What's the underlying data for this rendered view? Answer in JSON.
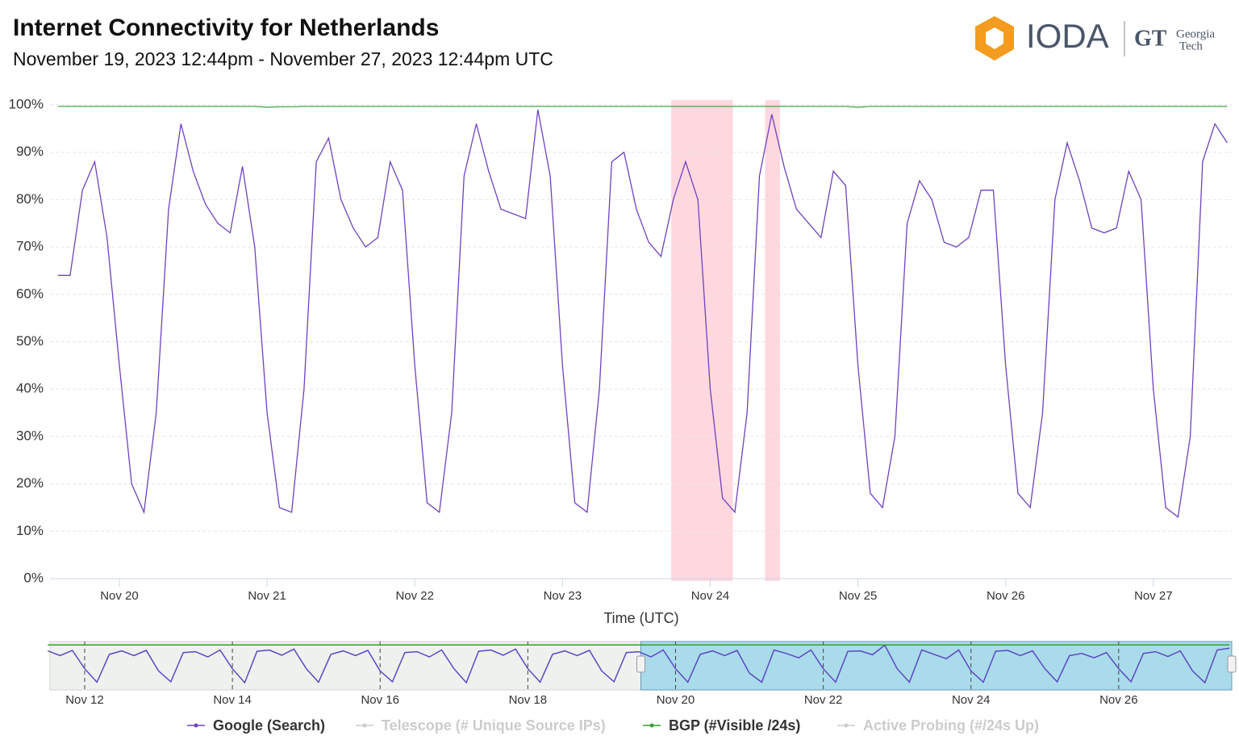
{
  "header": {
    "logo": "IODA",
    "partner_mark": "GT",
    "partner_name": [
      "Georgia",
      "Tech"
    ]
  },
  "chart_data": [
    {
      "type": "line",
      "title": "Internet Connectivity for  Netherlands",
      "subtitle": "November 19, 2023 12:44pm - November 27, 2023 12:44pm UTC",
      "x_label": "Time (UTC)",
      "xlim": [
        "2023-11-19T12:44",
        "2023-11-27T12:44"
      ],
      "xticks": [
        {
          "value": "2023-11-20T00:00",
          "label": "Nov 20"
        },
        {
          "value": "2023-11-21T00:00",
          "label": "Nov 21"
        },
        {
          "value": "2023-11-22T00:00",
          "label": "Nov 22"
        },
        {
          "value": "2023-11-23T00:00",
          "label": "Nov 23"
        },
        {
          "value": "2023-11-24T00:00",
          "label": "Nov 24"
        },
        {
          "value": "2023-11-25T00:00",
          "label": "Nov 25"
        },
        {
          "value": "2023-11-26T00:00",
          "label": "Nov 26"
        },
        {
          "value": "2023-11-27T00:00",
          "label": "Nov 27"
        }
      ],
      "ylim": [
        0,
        100
      ],
      "yticks": [
        {
          "value": 0,
          "label": "0%"
        },
        {
          "value": 10,
          "label": "10%"
        },
        {
          "value": 20,
          "label": "20%"
        },
        {
          "value": 30,
          "label": "30%"
        },
        {
          "value": 40,
          "label": "40%"
        },
        {
          "value": 50,
          "label": "50%"
        },
        {
          "value": 60,
          "label": "60%"
        },
        {
          "value": 70,
          "label": "70%"
        },
        {
          "value": 80,
          "label": "80%"
        },
        {
          "value": 90,
          "label": "90%"
        },
        {
          "value": 100,
          "label": "100%"
        }
      ],
      "grid": true,
      "alert_bands": [
        {
          "start": "2023-11-23T17:40",
          "end": "2023-11-24T03:40"
        },
        {
          "start": "2023-11-24T08:55",
          "end": "2023-11-24T11:20"
        }
      ],
      "alert_color": "#ffb6c4",
      "x": [
        "2023-11-19T14:00",
        "2023-11-19T16:00",
        "2023-11-19T18:00",
        "2023-11-19T20:00",
        "2023-11-19T22:00",
        "2023-11-20T00:00",
        "2023-11-20T02:00",
        "2023-11-20T04:00",
        "2023-11-20T06:00",
        "2023-11-20T08:00",
        "2023-11-20T10:00",
        "2023-11-20T12:00",
        "2023-11-20T14:00",
        "2023-11-20T16:00",
        "2023-11-20T18:00",
        "2023-11-20T20:00",
        "2023-11-20T22:00",
        "2023-11-21T00:00",
        "2023-11-21T02:00",
        "2023-11-21T04:00",
        "2023-11-21T06:00",
        "2023-11-21T08:00",
        "2023-11-21T10:00",
        "2023-11-21T12:00",
        "2023-11-21T14:00",
        "2023-11-21T16:00",
        "2023-11-21T18:00",
        "2023-11-21T20:00",
        "2023-11-21T22:00",
        "2023-11-22T00:00",
        "2023-11-22T02:00",
        "2023-11-22T04:00",
        "2023-11-22T06:00",
        "2023-11-22T08:00",
        "2023-11-22T10:00",
        "2023-11-22T12:00",
        "2023-11-22T14:00",
        "2023-11-22T16:00",
        "2023-11-22T18:00",
        "2023-11-22T20:00",
        "2023-11-22T22:00",
        "2023-11-23T00:00",
        "2023-11-23T02:00",
        "2023-11-23T04:00",
        "2023-11-23T06:00",
        "2023-11-23T08:00",
        "2023-11-23T10:00",
        "2023-11-23T12:00",
        "2023-11-23T14:00",
        "2023-11-23T16:00",
        "2023-11-23T18:00",
        "2023-11-23T20:00",
        "2023-11-23T22:00",
        "2023-11-24T00:00",
        "2023-11-24T02:00",
        "2023-11-24T04:00",
        "2023-11-24T06:00",
        "2023-11-24T08:00",
        "2023-11-24T10:00",
        "2023-11-24T12:00",
        "2023-11-24T14:00",
        "2023-11-24T16:00",
        "2023-11-24T18:00",
        "2023-11-24T20:00",
        "2023-11-24T22:00",
        "2023-11-25T00:00",
        "2023-11-25T02:00",
        "2023-11-25T04:00",
        "2023-11-25T06:00",
        "2023-11-25T08:00",
        "2023-11-25T10:00",
        "2023-11-25T12:00",
        "2023-11-25T14:00",
        "2023-11-25T16:00",
        "2023-11-25T18:00",
        "2023-11-25T20:00",
        "2023-11-25T22:00",
        "2023-11-26T00:00",
        "2023-11-26T02:00",
        "2023-11-26T04:00",
        "2023-11-26T06:00",
        "2023-11-26T08:00",
        "2023-11-26T10:00",
        "2023-11-26T12:00",
        "2023-11-26T14:00",
        "2023-11-26T16:00",
        "2023-11-26T18:00",
        "2023-11-26T20:00",
        "2023-11-26T22:00",
        "2023-11-27T00:00",
        "2023-11-27T02:00",
        "2023-11-27T04:00",
        "2023-11-27T06:00",
        "2023-11-27T08:00",
        "2023-11-27T10:00",
        "2023-11-27T12:00"
      ],
      "series": [
        {
          "name": "Google (Search)",
          "color": "#6f42c1",
          "values": [
            64,
            64,
            82,
            88,
            72,
            45,
            20,
            14,
            35,
            78,
            96,
            86,
            79,
            75,
            73,
            87,
            70,
            35,
            15,
            14,
            40,
            88,
            93,
            80,
            74,
            70,
            72,
            88,
            82,
            45,
            16,
            14,
            35,
            85,
            96,
            86,
            78,
            77,
            76,
            99,
            85,
            45,
            16,
            14,
            40,
            88,
            90,
            78,
            71,
            68,
            80,
            88,
            80,
            40,
            17,
            14,
            35,
            85,
            98,
            87,
            78,
            75,
            72,
            86,
            83,
            45,
            18,
            15,
            30,
            75,
            84,
            80,
            71,
            70,
            72,
            82,
            82,
            45,
            18,
            15,
            35,
            80,
            92,
            84,
            74,
            73,
            74,
            86,
            80,
            40,
            15,
            13,
            30,
            88,
            96,
            92
          ]
        },
        {
          "name": "Telescope (# Unique Source IPs)",
          "color": "#cccccc",
          "visible": false
        },
        {
          "name": "BGP (#Visible /24s)",
          "color": "#33a02c",
          "values": [
            99.7,
            99.7,
            99.7,
            99.7,
            99.7,
            99.7,
            99.7,
            99.7,
            99.7,
            99.7,
            99.7,
            99.7,
            99.7,
            99.7,
            99.7,
            99.7,
            99.7,
            99.5,
            99.6,
            99.6,
            99.7,
            99.7,
            99.7,
            99.7,
            99.7,
            99.7,
            99.7,
            99.7,
            99.7,
            99.7,
            99.7,
            99.7,
            99.7,
            99.7,
            99.7,
            99.7,
            99.7,
            99.7,
            99.7,
            99.7,
            99.7,
            99.7,
            99.7,
            99.7,
            99.7,
            99.7,
            99.7,
            99.7,
            99.7,
            99.7,
            99.7,
            99.7,
            99.7,
            99.7,
            99.7,
            99.7,
            99.7,
            99.7,
            99.7,
            99.7,
            99.7,
            99.7,
            99.7,
            99.7,
            99.7,
            99.5,
            99.7,
            99.7,
            99.7,
            99.7,
            99.7,
            99.7,
            99.7,
            99.7,
            99.7,
            99.7,
            99.7,
            99.7,
            99.7,
            99.7,
            99.7,
            99.7,
            99.7,
            99.7,
            99.7,
            99.7,
            99.7,
            99.7,
            99.7,
            99.7,
            99.7,
            99.7,
            99.7,
            99.7,
            99.7,
            99.7
          ]
        },
        {
          "name": "Active Probing (#/24s Up)",
          "color": "#cccccc",
          "visible": false
        }
      ]
    },
    {
      "type": "line",
      "xlim": [
        "2023-11-11T12:44",
        "2023-11-27T12:44"
      ],
      "xticks": [
        {
          "value": "2023-11-12T00:00",
          "label": "Nov 12"
        },
        {
          "value": "2023-11-14T00:00",
          "label": "Nov 14"
        },
        {
          "value": "2023-11-16T00:00",
          "label": "Nov 16"
        },
        {
          "value": "2023-11-18T00:00",
          "label": "Nov 18"
        },
        {
          "value": "2023-11-20T00:00",
          "label": "Nov 20"
        },
        {
          "value": "2023-11-22T00:00",
          "label": "Nov 22"
        },
        {
          "value": "2023-11-24T00:00",
          "label": "Nov 24"
        },
        {
          "value": "2023-11-26T00:00",
          "label": "Nov 26"
        }
      ],
      "ylim": [
        0,
        100
      ],
      "selection": [
        "2023-11-19T12:44",
        "2023-11-27T12:44"
      ],
      "selection_color": "#a9dbeb",
      "x": [
        "2023-11-11T12:00",
        "2023-11-11T16:00",
        "2023-11-11T20:00",
        "2023-11-12T00:00",
        "2023-11-12T04:00",
        "2023-11-12T08:00",
        "2023-11-12T12:00",
        "2023-11-12T16:00",
        "2023-11-12T20:00",
        "2023-11-13T00:00",
        "2023-11-13T04:00",
        "2023-11-13T08:00",
        "2023-11-13T12:00",
        "2023-11-13T16:00",
        "2023-11-13T20:00",
        "2023-11-14T00:00",
        "2023-11-14T04:00",
        "2023-11-14T08:00",
        "2023-11-14T12:00",
        "2023-11-14T16:00",
        "2023-11-14T20:00",
        "2023-11-15T00:00",
        "2023-11-15T04:00",
        "2023-11-15T08:00",
        "2023-11-15T12:00",
        "2023-11-15T16:00",
        "2023-11-15T20:00",
        "2023-11-16T00:00",
        "2023-11-16T04:00",
        "2023-11-16T08:00",
        "2023-11-16T12:00",
        "2023-11-16T16:00",
        "2023-11-16T20:00",
        "2023-11-17T00:00",
        "2023-11-17T04:00",
        "2023-11-17T08:00",
        "2023-11-17T12:00",
        "2023-11-17T16:00",
        "2023-11-17T20:00",
        "2023-11-18T00:00",
        "2023-11-18T04:00",
        "2023-11-18T08:00",
        "2023-11-18T12:00",
        "2023-11-18T16:00",
        "2023-11-18T20:00",
        "2023-11-19T00:00",
        "2023-11-19T04:00",
        "2023-11-19T08:00",
        "2023-11-19T12:00",
        "2023-11-19T16:00",
        "2023-11-19T20:00",
        "2023-11-20T00:00",
        "2023-11-20T04:00",
        "2023-11-20T08:00",
        "2023-11-20T12:00",
        "2023-11-20T16:00",
        "2023-11-20T20:00",
        "2023-11-21T00:00",
        "2023-11-21T04:00",
        "2023-11-21T08:00",
        "2023-11-21T12:00",
        "2023-11-21T16:00",
        "2023-11-21T20:00",
        "2023-11-22T00:00",
        "2023-11-22T04:00",
        "2023-11-22T08:00",
        "2023-11-22T12:00",
        "2023-11-22T16:00",
        "2023-11-22T20:00",
        "2023-11-23T00:00",
        "2023-11-23T04:00",
        "2023-11-23T08:00",
        "2023-11-23T12:00",
        "2023-11-23T16:00",
        "2023-11-23T20:00",
        "2023-11-24T00:00",
        "2023-11-24T04:00",
        "2023-11-24T08:00",
        "2023-11-24T12:00",
        "2023-11-24T16:00",
        "2023-11-24T20:00",
        "2023-11-25T00:00",
        "2023-11-25T04:00",
        "2023-11-25T08:00",
        "2023-11-25T12:00",
        "2023-11-25T16:00",
        "2023-11-25T20:00",
        "2023-11-26T00:00",
        "2023-11-26T04:00",
        "2023-11-26T08:00",
        "2023-11-26T12:00",
        "2023-11-26T16:00",
        "2023-11-26T20:00",
        "2023-11-27T00:00",
        "2023-11-27T04:00",
        "2023-11-27T08:00",
        "2023-11-27T12:00"
      ],
      "series": [
        {
          "color": "#5b48c2",
          "values": [
            86,
            75,
            87,
            45,
            14,
            78,
            86,
            75,
            87,
            40,
            15,
            82,
            84,
            72,
            88,
            45,
            13,
            85,
            88,
            76,
            90,
            45,
            14,
            78,
            86,
            75,
            87,
            40,
            15,
            82,
            84,
            72,
            88,
            45,
            13,
            85,
            88,
            76,
            90,
            45,
            14,
            78,
            86,
            75,
            87,
            40,
            15,
            82,
            84,
            72,
            88,
            45,
            14,
            78,
            86,
            75,
            87,
            35,
            14,
            88,
            80,
            70,
            88,
            45,
            14,
            85,
            86,
            77,
            99,
            45,
            14,
            88,
            78,
            68,
            88,
            40,
            14,
            85,
            87,
            75,
            86,
            45,
            15,
            75,
            80,
            70,
            82,
            45,
            15,
            80,
            84,
            73,
            86,
            40,
            13,
            88,
            92
          ]
        },
        {
          "color": "#33a02c",
          "values": [
            99.7,
            99.7,
            99.7,
            99.7,
            99.7,
            99.7,
            99.7,
            99.7,
            99.7,
            99.7,
            99.7,
            99.7,
            99.7,
            99.7,
            99.7,
            99.7,
            99.7,
            99.7,
            99.7,
            99.7,
            99.7,
            99.7,
            99.7,
            99.7,
            99.7,
            99.7,
            99.7,
            99.7,
            99.7,
            99.7,
            99.7,
            99.7,
            99.7,
            99.7,
            99.7,
            99.7,
            99.7,
            99.7,
            99.7,
            99.7,
            99.7,
            99.7,
            99.7,
            99.7,
            99.7,
            99.7,
            99.7,
            99.7,
            99.7,
            99.7,
            99.7,
            99.7,
            99.7,
            99.7,
            99.7,
            99.7,
            99.7,
            99.7,
            99.7,
            99.7,
            99.7,
            99.7,
            99.7,
            99.7,
            99.7,
            99.7,
            99.7,
            99.7,
            99.7,
            99.7,
            99.7,
            99.7,
            99.7,
            99.7,
            99.7,
            99.7,
            99.7,
            99.7,
            99.7,
            99.7,
            99.7,
            99.7,
            99.7,
            99.7,
            99.7,
            99.7,
            99.7,
            99.7,
            99.7,
            99.7,
            99.7,
            99.7,
            99.7,
            99.7,
            99.7,
            99.7,
            99.7
          ]
        }
      ]
    }
  ]
}
